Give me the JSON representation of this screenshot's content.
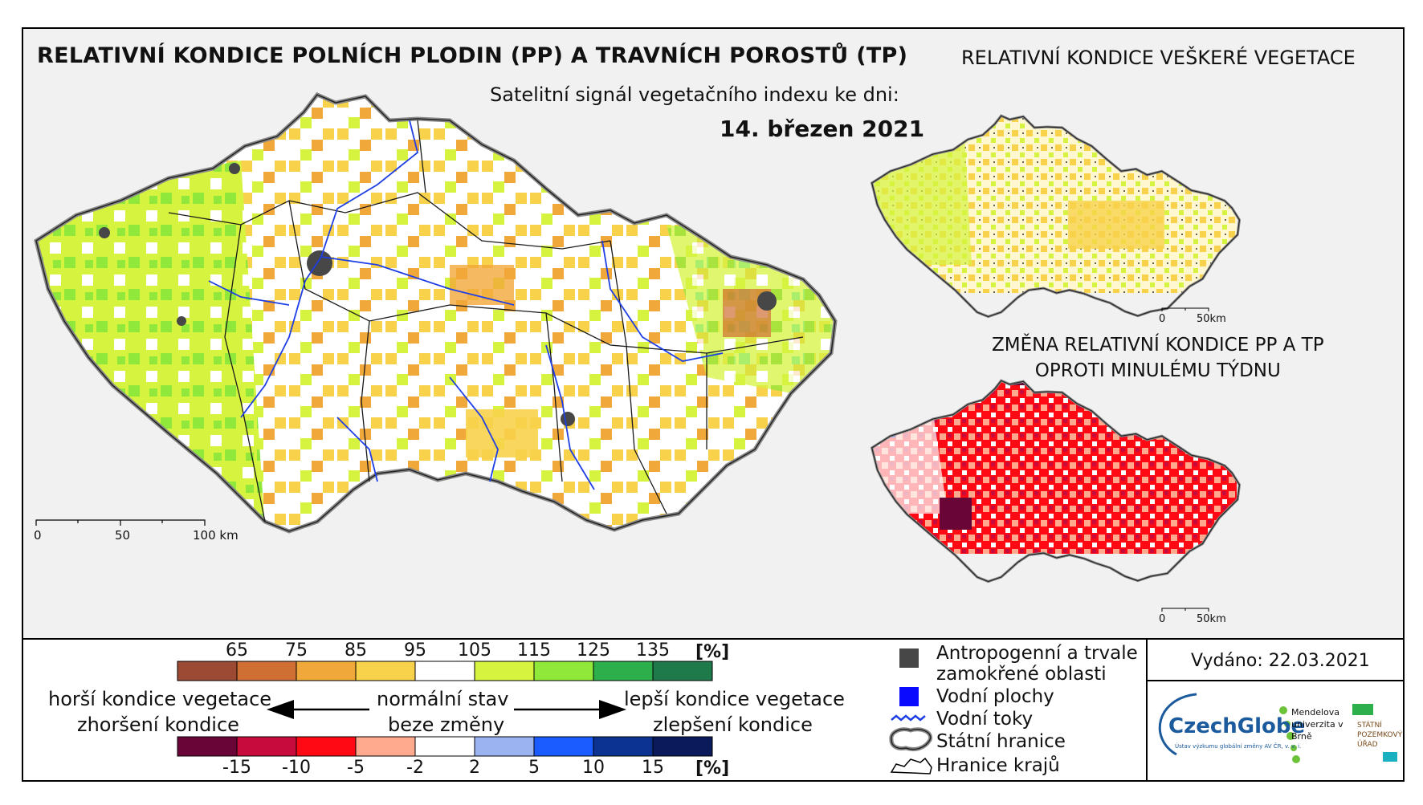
{
  "titles": {
    "main": "RELATIVNÍ KONDICE POLNÍCH PLODIN (PP) A TRAVNÍCH POROSTŮ (TP)",
    "subtitle": "Satelitní signál vegetačního indexu ke dni:",
    "date": "14. březen 2021",
    "right_top": "RELATIVNÍ KONDICE VEŠKERÉ VEGETACE",
    "right_bottom_line1": "ZMĚNA RELATIVNÍ KONDICE PP A TP",
    "right_bottom_line2": "OPROTI MINULÉMU TÝDNU"
  },
  "scalebar_main": {
    "ticks": [
      "0",
      "50",
      "100 km"
    ]
  },
  "scalebar_small": {
    "ticks": [
      "0",
      "50km"
    ]
  },
  "condition_scale": {
    "ticks": [
      "65",
      "75",
      "85",
      "95",
      "105",
      "115",
      "125",
      "135"
    ],
    "unit": "[%]",
    "colors": [
      "#9c4a33",
      "#cf6f33",
      "#f1a83a",
      "#f8d24b",
      "#ffffff",
      "#d6f33f",
      "#8fe83a",
      "#2db04b",
      "#1e7a4a"
    ]
  },
  "change_scale": {
    "ticks": [
      "-15",
      "-10",
      "-5",
      "-2",
      "2",
      "5",
      "10",
      "15"
    ],
    "unit": "[%]",
    "colors": [
      "#6a0637",
      "#c70b3c",
      "#ff0a14",
      "#ffa98f",
      "#ffffff",
      "#9cb3f2",
      "#1a5cff",
      "#0c3392",
      "#0a1a5a"
    ]
  },
  "captions": {
    "worse_1": "horší kondice vegetace",
    "worse_2": "zhoršení kondice",
    "normal_1": "normální stav",
    "normal_2": "beze změny",
    "better_1": "lepší kondice vegetace",
    "better_2": "zlepšení kondice"
  },
  "legend": {
    "anthropogenic_1": "Antropogenní a trvale",
    "anthropogenic_2": "zamokřené oblasti",
    "water_areas": "Vodní plochy",
    "rivers": "Vodní toky",
    "state_border": "Státní hranice",
    "region_border": "Hranice krajů"
  },
  "issued": "Vydáno: 22.03.2021",
  "logos": {
    "czechglobe": "CzechGlobe",
    "czechglobe_sub": "Ústav výzkumu globální změny AV ČR, v. v. i.",
    "mendel": "Mendelova univerzita v Brně",
    "spu": "STÁTNÍ POZEMKOVÝ ÚŘAD"
  }
}
